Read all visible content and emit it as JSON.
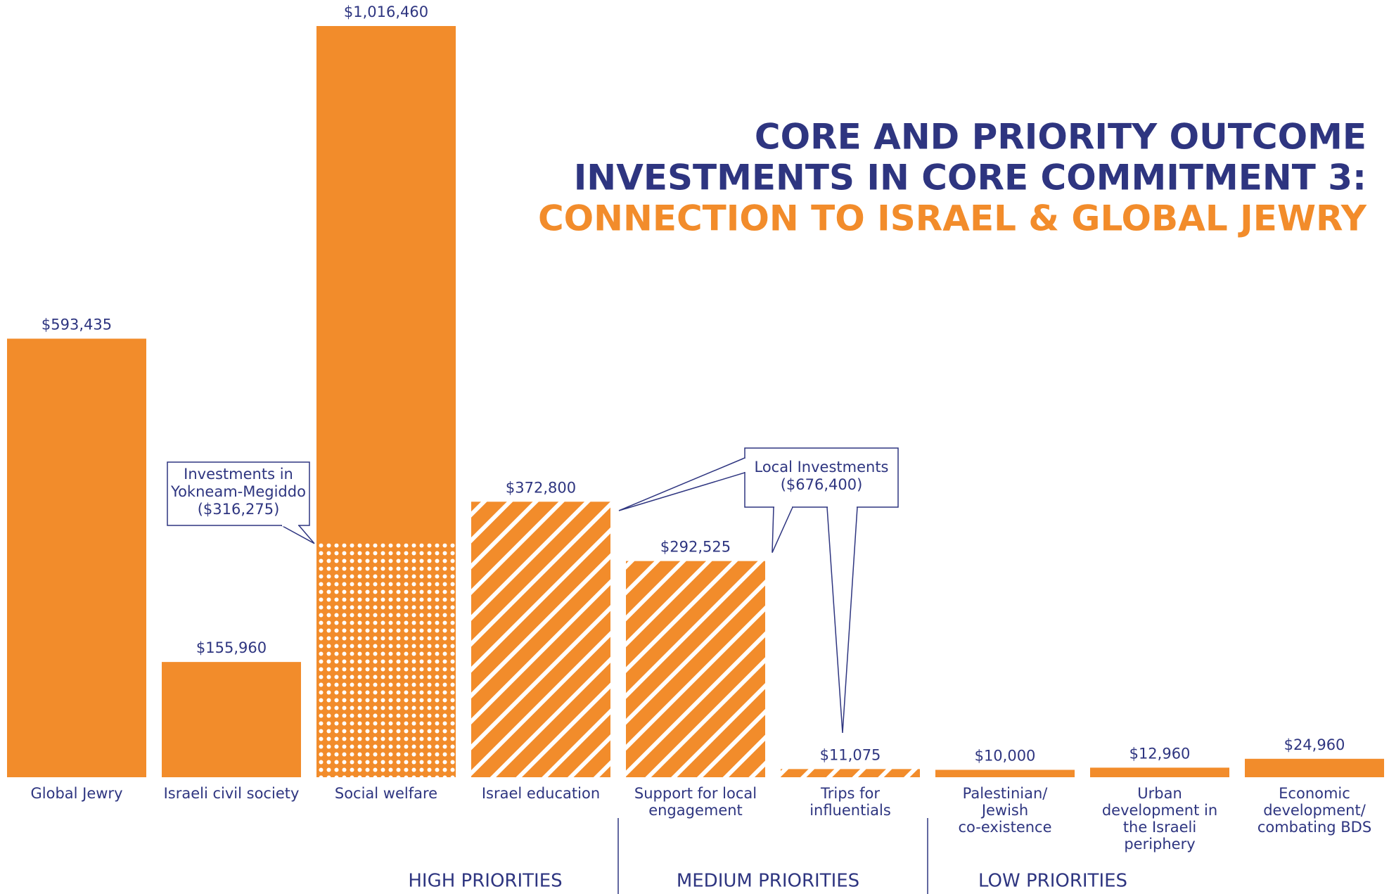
{
  "chart_data": {
    "type": "bar",
    "title": [
      "CORE AND PRIORITY OUTCOME",
      "INVESTMENTS IN CORE COMMITMENT 3:",
      "CONNECTION TO ISRAEL & GLOBAL JEWRY"
    ],
    "title_colors": [
      "#2e3580",
      "#2e3580",
      "#f28c2b"
    ],
    "categories": [
      [
        "Global Jewry"
      ],
      [
        "Israeli civil society"
      ],
      [
        "Social welfare"
      ],
      [
        "Israel education"
      ],
      [
        "Support for local",
        "engagement"
      ],
      [
        "Trips for",
        "influentials"
      ],
      [
        "Palestinian/",
        "Jewish",
        "co-existence"
      ],
      [
        "Urban",
        "development in",
        "the Israeli",
        "periphery"
      ],
      [
        "Economic",
        "development/",
        "combating BDS"
      ]
    ],
    "values": [
      593435,
      155960,
      1016460,
      372800,
      292525,
      11075,
      10000,
      12960,
      24960
    ],
    "value_labels": [
      "$593,435",
      "$155,960",
      "$1,016,460",
      "$372,800",
      "$292,525",
      "$11,075",
      "$10,000",
      "$12,960",
      "$24,960"
    ],
    "fill_styles": [
      "solid",
      "solid",
      "solid",
      "hatched",
      "hatched",
      "hatched",
      "solid",
      "solid",
      "solid"
    ],
    "color": "#f28c2b",
    "annotations": [
      {
        "text": [
          "Investments in",
          "Yokneam-Megiddo",
          "($316,275)"
        ],
        "value": 316275,
        "target": 2,
        "style": "dotted"
      },
      {
        "text": [
          "Local Investments",
          "($676,400)"
        ],
        "value": 676400
      }
    ],
    "groups": [
      {
        "label": "HIGH PRIORITIES",
        "size": 4
      },
      {
        "label": "MEDIUM PRIORITIES",
        "size": 2
      },
      {
        "label": "LOW PRIORITIES",
        "size": 3
      }
    ]
  }
}
